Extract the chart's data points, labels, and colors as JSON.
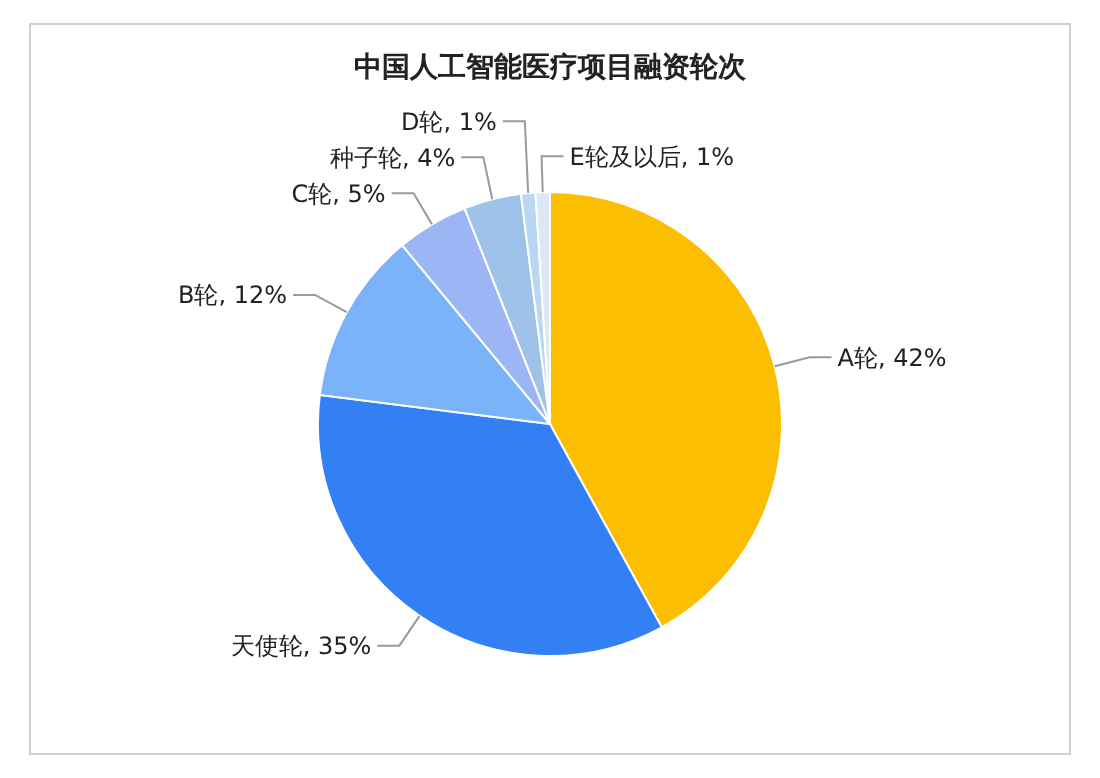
{
  "chart_data": {
    "type": "pie",
    "title": "中国人工智能医疗项目融资轮次",
    "categories": [
      "A轮",
      "天使轮",
      "B轮",
      "C轮",
      "种子轮",
      "D轮",
      "E轮及以后"
    ],
    "values": [
      42,
      35,
      12,
      5,
      4,
      1,
      1
    ],
    "colors": [
      "#fbbe00",
      "#3380f5",
      "#7ab3f7",
      "#9cb6f5",
      "#9fc3e8",
      "#b9d6f2",
      "#dbe9f7"
    ],
    "value_labels": [
      ", 42%",
      ", 35%",
      ", 12%",
      ", 5%",
      ", 4%",
      ", 1%",
      ", 1%"
    ]
  }
}
